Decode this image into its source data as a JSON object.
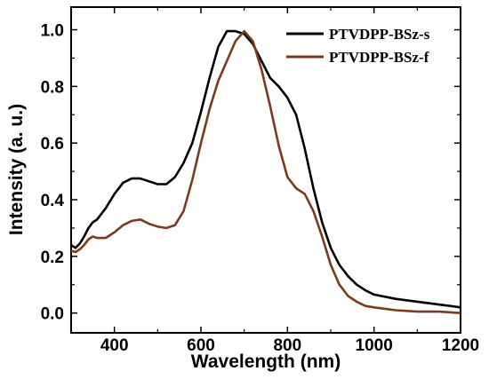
{
  "chart_data": {
    "type": "line",
    "title": "",
    "xlabel": "Wavelength (nm)",
    "ylabel": "Intensity (a. u.)",
    "xlim": [
      300,
      1200
    ],
    "ylim": [
      -0.07,
      1.08
    ],
    "x_ticks": [
      400,
      600,
      800,
      1000,
      1200
    ],
    "x_tick_labels": [
      "400",
      "600",
      "800",
      "1000",
      "1200"
    ],
    "y_ticks": [
      0.0,
      0.2,
      0.4,
      0.6,
      0.8,
      1.0
    ],
    "y_tick_labels": [
      "0.0",
      "0.2",
      "0.4",
      "0.6",
      "0.8",
      "1.0"
    ],
    "grid": false,
    "legend_position": "top-right",
    "series": [
      {
        "name": "PTVDPP-BSz-s",
        "color": "#000000",
        "points": [
          [
            300,
            0.24
          ],
          [
            310,
            0.23
          ],
          [
            320,
            0.245
          ],
          [
            330,
            0.27
          ],
          [
            340,
            0.3
          ],
          [
            350,
            0.32
          ],
          [
            360,
            0.33
          ],
          [
            380,
            0.37
          ],
          [
            400,
            0.42
          ],
          [
            420,
            0.46
          ],
          [
            440,
            0.475
          ],
          [
            460,
            0.475
          ],
          [
            480,
            0.465
          ],
          [
            500,
            0.455
          ],
          [
            520,
            0.455
          ],
          [
            540,
            0.48
          ],
          [
            560,
            0.53
          ],
          [
            580,
            0.6
          ],
          [
            600,
            0.71
          ],
          [
            620,
            0.83
          ],
          [
            640,
            0.94
          ],
          [
            660,
            0.995
          ],
          [
            680,
            0.995
          ],
          [
            700,
            0.985
          ],
          [
            720,
            0.95
          ],
          [
            740,
            0.89
          ],
          [
            760,
            0.83
          ],
          [
            780,
            0.8
          ],
          [
            800,
            0.76
          ],
          [
            820,
            0.7
          ],
          [
            840,
            0.58
          ],
          [
            860,
            0.44
          ],
          [
            880,
            0.32
          ],
          [
            900,
            0.23
          ],
          [
            920,
            0.17
          ],
          [
            940,
            0.13
          ],
          [
            960,
            0.1
          ],
          [
            980,
            0.08
          ],
          [
            1000,
            0.065
          ],
          [
            1050,
            0.05
          ],
          [
            1100,
            0.04
          ],
          [
            1150,
            0.03
          ],
          [
            1200,
            0.02
          ]
        ]
      },
      {
        "name": "PTVDPP-BSz-f",
        "color": "#7b3a1c",
        "points": [
          [
            300,
            0.22
          ],
          [
            310,
            0.215
          ],
          [
            320,
            0.225
          ],
          [
            330,
            0.24
          ],
          [
            340,
            0.26
          ],
          [
            350,
            0.27
          ],
          [
            360,
            0.265
          ],
          [
            380,
            0.265
          ],
          [
            400,
            0.285
          ],
          [
            420,
            0.31
          ],
          [
            440,
            0.325
          ],
          [
            460,
            0.33
          ],
          [
            480,
            0.315
          ],
          [
            500,
            0.305
          ],
          [
            520,
            0.3
          ],
          [
            540,
            0.31
          ],
          [
            560,
            0.36
          ],
          [
            580,
            0.47
          ],
          [
            600,
            0.6
          ],
          [
            620,
            0.72
          ],
          [
            640,
            0.82
          ],
          [
            660,
            0.89
          ],
          [
            680,
            0.96
          ],
          [
            700,
            0.995
          ],
          [
            720,
            0.96
          ],
          [
            740,
            0.86
          ],
          [
            760,
            0.73
          ],
          [
            780,
            0.59
          ],
          [
            800,
            0.48
          ],
          [
            820,
            0.44
          ],
          [
            840,
            0.42
          ],
          [
            860,
            0.36
          ],
          [
            880,
            0.27
          ],
          [
            900,
            0.17
          ],
          [
            920,
            0.1
          ],
          [
            940,
            0.06
          ],
          [
            960,
            0.04
          ],
          [
            980,
            0.025
          ],
          [
            1000,
            0.02
          ],
          [
            1050,
            0.01
          ],
          [
            1100,
            0.005
          ],
          [
            1150,
            0.005
          ],
          [
            1200,
            0.0
          ]
        ]
      }
    ]
  }
}
